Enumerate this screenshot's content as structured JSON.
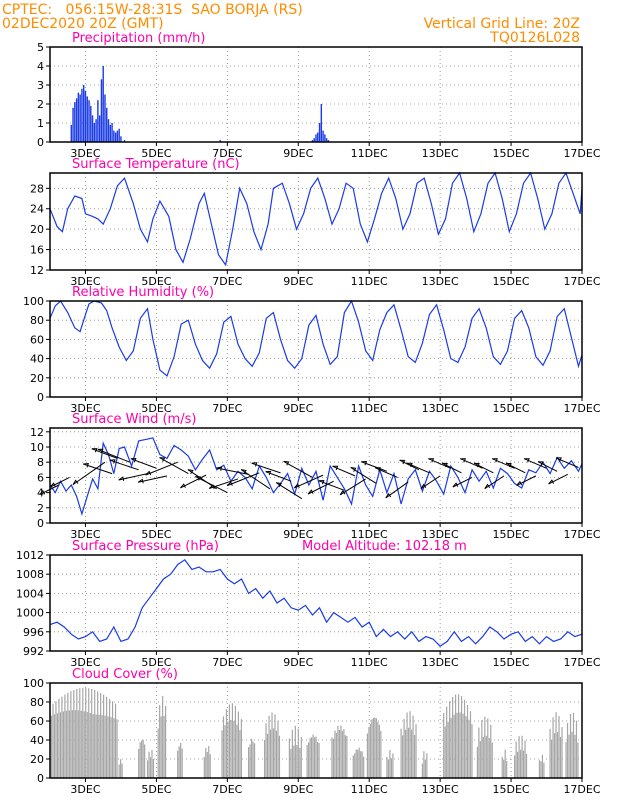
{
  "header": {
    "line1_left": "CPTEC:   056:15W-28:31S  SAO BORJA (RS)",
    "line2_left": "02DEC2020 20Z (GMT)",
    "line1_right": "Vertical Grid Line: 20Z",
    "line2_right": "TQ0126L028"
  },
  "colors": {
    "header": "#ff8c00",
    "title": "#ff00aa",
    "series": "#1a3be6",
    "cloud": "#a6a6a6",
    "grid": "#888888"
  },
  "chart_data": [
    {
      "id": "precip",
      "type": "bar",
      "title": "Precipitation (mm/h)",
      "ylim": [
        0,
        5
      ],
      "yticks": [
        0,
        1,
        2,
        3,
        4,
        5
      ],
      "xlim": [
        2.0,
        17.0
      ],
      "xticks": [
        "3DEC",
        "5DEC",
        "7DEC",
        "9DEC",
        "11DEC",
        "13DEC",
        "15DEC",
        "17DEC"
      ],
      "grid": true,
      "x": [
        2.6,
        2.65,
        2.7,
        2.75,
        2.8,
        2.85,
        2.9,
        2.95,
        3.0,
        3.05,
        3.1,
        3.15,
        3.2,
        3.25,
        3.3,
        3.35,
        3.4,
        3.45,
        3.5,
        3.55,
        3.6,
        3.65,
        3.7,
        3.75,
        3.8,
        3.85,
        3.9,
        3.95,
        4.0,
        4.1,
        6.8,
        9.4,
        9.45,
        9.5,
        9.55,
        9.6,
        9.65,
        9.7,
        9.75,
        9.8,
        9.85
      ],
      "values": [
        0.9,
        1.8,
        2.1,
        2.3,
        2.6,
        2.5,
        2.8,
        3.0,
        2.7,
        2.4,
        2.2,
        1.9,
        1.4,
        1.0,
        1.2,
        2.2,
        1.4,
        3.3,
        4.0,
        2.5,
        1.8,
        1.2,
        0.9,
        1.0,
        0.6,
        0.5,
        0.6,
        0.7,
        0.3,
        0.1,
        0.1,
        0.1,
        0.2,
        0.4,
        0.5,
        1.0,
        2.0,
        0.6,
        0.4,
        0.2,
        0.1
      ]
    },
    {
      "id": "temp",
      "type": "line",
      "title": "Surface Temperature (nC)",
      "ylim": [
        12,
        31
      ],
      "yticks": [
        12,
        16,
        20,
        24,
        28
      ],
      "xlim": [
        2.0,
        17.0
      ],
      "xticks": [
        "3DEC",
        "5DEC",
        "7DEC",
        "9DEC",
        "11DEC",
        "13DEC",
        "15DEC",
        "17DEC"
      ],
      "grid": true,
      "x": [
        2.0,
        2.2,
        2.35,
        2.5,
        2.7,
        2.9,
        3.0,
        3.2,
        3.35,
        3.5,
        3.7,
        3.9,
        4.1,
        4.35,
        4.55,
        4.75,
        4.9,
        5.1,
        5.35,
        5.55,
        5.75,
        5.95,
        6.2,
        6.35,
        6.55,
        6.75,
        6.95,
        7.15,
        7.35,
        7.55,
        7.75,
        7.95,
        8.15,
        8.3,
        8.55,
        8.75,
        8.95,
        9.15,
        9.35,
        9.55,
        9.75,
        9.95,
        10.15,
        10.35,
        10.55,
        10.75,
        10.95,
        11.15,
        11.35,
        11.55,
        11.75,
        11.95,
        12.15,
        12.35,
        12.55,
        12.75,
        12.95,
        13.15,
        13.35,
        13.55,
        13.75,
        13.95,
        14.15,
        14.35,
        14.55,
        14.75,
        14.95,
        15.15,
        15.35,
        15.55,
        15.75,
        15.95,
        16.15,
        16.35,
        16.55,
        16.75,
        16.95,
        17.0
      ],
      "values": [
        24,
        20.5,
        19.5,
        24,
        26.5,
        26,
        23,
        22.5,
        22,
        21,
        24,
        28.5,
        30,
        25,
        20,
        17.5,
        22,
        25.5,
        22.5,
        16,
        13.5,
        18,
        25,
        27,
        21,
        15,
        13,
        20,
        28,
        25,
        19.5,
        16,
        21,
        28,
        29,
        25,
        20,
        23,
        28,
        30,
        26,
        21,
        24,
        29,
        28,
        21,
        17.5,
        22,
        27,
        30,
        26,
        20,
        23,
        29,
        30,
        25,
        19,
        22,
        29,
        31,
        26,
        19.5,
        23,
        29,
        31,
        26,
        19.5,
        23,
        29,
        31,
        26,
        20,
        23,
        29,
        31,
        27,
        23,
        28
      ]
    },
    {
      "id": "rh",
      "type": "line",
      "title": "Relative Humidity (%)",
      "ylim": [
        0,
        100
      ],
      "yticks": [
        0,
        20,
        40,
        60,
        80,
        100
      ],
      "xlim": [
        2.0,
        17.0
      ],
      "xticks": [
        "3DEC",
        "5DEC",
        "7DEC",
        "9DEC",
        "11DEC",
        "13DEC",
        "15DEC",
        "17DEC"
      ],
      "grid": true,
      "x": [
        2.0,
        2.15,
        2.3,
        2.5,
        2.7,
        2.85,
        3.0,
        3.1,
        3.25,
        3.45,
        3.6,
        3.75,
        3.95,
        4.15,
        4.35,
        4.55,
        4.75,
        4.9,
        5.1,
        5.3,
        5.5,
        5.7,
        5.9,
        6.1,
        6.3,
        6.5,
        6.7,
        6.9,
        7.1,
        7.3,
        7.5,
        7.7,
        7.9,
        8.1,
        8.3,
        8.5,
        8.7,
        8.9,
        9.1,
        9.3,
        9.5,
        9.7,
        9.9,
        10.1,
        10.3,
        10.5,
        10.7,
        10.9,
        11.1,
        11.3,
        11.5,
        11.7,
        11.9,
        12.1,
        12.3,
        12.5,
        12.7,
        12.9,
        13.1,
        13.3,
        13.5,
        13.7,
        13.9,
        14.1,
        14.3,
        14.5,
        14.7,
        14.9,
        15.1,
        15.3,
        15.5,
        15.7,
        15.9,
        16.1,
        16.3,
        16.5,
        16.7,
        16.9,
        17.0
      ],
      "values": [
        82,
        95,
        100,
        88,
        72,
        68,
        86,
        97,
        100,
        98,
        90,
        72,
        52,
        38,
        48,
        82,
        92,
        60,
        28,
        22,
        42,
        76,
        80,
        55,
        38,
        30,
        45,
        78,
        84,
        55,
        40,
        32,
        46,
        82,
        88,
        60,
        38,
        30,
        40,
        75,
        85,
        55,
        34,
        42,
        88,
        100,
        78,
        48,
        38,
        70,
        88,
        96,
        70,
        42,
        36,
        56,
        86,
        96,
        70,
        40,
        36,
        52,
        82,
        92,
        72,
        42,
        34,
        48,
        82,
        90,
        72,
        42,
        33,
        48,
        84,
        92,
        62,
        32,
        44
      ]
    },
    {
      "id": "wind",
      "type": "line",
      "title": "Surface Wind (m/s)",
      "ylim": [
        0,
        12.5
      ],
      "yticks": [
        0,
        2,
        4,
        6,
        8,
        10,
        12
      ],
      "xlim": [
        2.0,
        17.0
      ],
      "xticks": [
        "3DEC",
        "5DEC",
        "7DEC",
        "9DEC",
        "11DEC",
        "13DEC",
        "15DEC",
        "17DEC"
      ],
      "grid": true,
      "x": [
        2.0,
        2.15,
        2.3,
        2.45,
        2.6,
        2.75,
        2.9,
        3.05,
        3.2,
        3.35,
        3.5,
        3.65,
        3.8,
        3.95,
        4.1,
        4.3,
        4.5,
        4.7,
        4.9,
        5.1,
        5.3,
        5.5,
        5.7,
        5.9,
        6.1,
        6.3,
        6.5,
        6.7,
        6.9,
        7.1,
        7.3,
        7.5,
        7.7,
        7.9,
        8.1,
        8.3,
        8.5,
        8.7,
        8.9,
        9.1,
        9.3,
        9.5,
        9.7,
        9.9,
        10.1,
        10.3,
        10.5,
        10.7,
        10.9,
        11.1,
        11.3,
        11.5,
        11.7,
        11.9,
        12.1,
        12.3,
        12.5,
        12.7,
        12.9,
        13.1,
        13.3,
        13.5,
        13.7,
        13.9,
        14.1,
        14.3,
        14.5,
        14.7,
        14.9,
        15.1,
        15.3,
        15.5,
        15.7,
        15.9,
        16.1,
        16.3,
        16.5,
        16.7,
        16.9,
        17.0
      ],
      "values": [
        5,
        4,
        5.5,
        4.2,
        5,
        3.5,
        1.2,
        3.5,
        5.8,
        4.5,
        10.5,
        9,
        6.5,
        9.8,
        10,
        7.5,
        10.8,
        11,
        11.2,
        9,
        8.5,
        10.2,
        9.6,
        8.8,
        7,
        8.4,
        9.6,
        7,
        7.6,
        5.5,
        6.8,
        6,
        4.5,
        7.5,
        6,
        4,
        5.2,
        6.5,
        3.8,
        7.2,
        5,
        6.8,
        3,
        7.5,
        6,
        4.5,
        2.5,
        7.5,
        5,
        3.5,
        7,
        4,
        6.5,
        2.5,
        5.8,
        7,
        4.2,
        6.8,
        5.5,
        3.8,
        7.5,
        6,
        4,
        7,
        5.5,
        6.8,
        4.6,
        7.2,
        6.5,
        5.2,
        4.6,
        7,
        6.6,
        8,
        6.5,
        8.6,
        7.2,
        8.2,
        6.8,
        7.8
      ],
      "arrows": {
        "x": [
          2.25,
          2.55,
          3.55,
          3.75,
          3.9,
          4.25,
          4.5,
          4.75,
          5.0,
          5.3,
          5.6,
          5.9,
          6.4,
          6.7,
          7.0,
          7.3,
          7.6,
          7.9,
          8.2,
          8.5,
          8.8,
          9.1,
          9.4,
          9.7,
          10.0,
          10.3,
          10.6,
          10.9,
          11.2,
          11.5,
          11.8,
          12.1,
          12.4,
          12.7,
          13.0,
          13.3,
          13.6,
          13.9,
          14.2,
          14.5,
          14.8,
          15.1,
          15.4,
          15.7,
          16.0,
          16.3,
          16.6,
          16.9
        ],
        "y": [
          5,
          6,
          8,
          6.5,
          8.5,
          8,
          7,
          6.5,
          7.2,
          6.2,
          8,
          6.5,
          6.3,
          4.5,
          4,
          5.8,
          6.4,
          6.6,
          4.5,
          6.6,
          5.5,
          3.2,
          6,
          6.3,
          5.5,
          4.3,
          6.2,
          5.8,
          5.2,
          6.8,
          6,
          5.4,
          7,
          6.6,
          6.2,
          7.2,
          6.6,
          6,
          7.2,
          6.6,
          6.2,
          7.2,
          6.6,
          6.2,
          7.2,
          6.8,
          6.4,
          7.3
        ],
        "u": [
          -6,
          -6,
          -10,
          -9,
          -8,
          -10,
          -9,
          -9,
          -8,
          -9,
          -10,
          -9,
          -8,
          -9,
          -10,
          -9,
          -10,
          -10,
          -9,
          -9,
          -8,
          -8,
          -9,
          -9,
          -8,
          -8,
          -7,
          -8,
          -8,
          -8,
          -7,
          -7,
          -6,
          -7,
          -6,
          -7,
          -6,
          -6,
          -7,
          -6,
          -6,
          -7,
          -6,
          -6,
          -7,
          -6,
          -6,
          -7
        ],
        "v": [
          -3,
          -3,
          -7,
          3,
          3,
          4,
          3,
          -2,
          3,
          -2,
          -4,
          5,
          -4,
          6,
          5,
          -3,
          2,
          -4,
          6,
          3,
          3,
          5,
          5,
          -4,
          -4,
          3,
          3,
          -5,
          5,
          3,
          3,
          -5,
          3,
          3,
          -4,
          3,
          3,
          -3,
          3,
          3,
          -4,
          3,
          3,
          -3,
          3,
          3,
          -3,
          3
        ]
      }
    },
    {
      "id": "pressure",
      "type": "line",
      "title": "Surface Pressure (hPa)",
      "annotation": "Model Altitude: 102.18  m",
      "ylim": [
        992,
        1012
      ],
      "yticks": [
        992,
        996,
        1000,
        1004,
        1008,
        1012
      ],
      "xlim": [
        2.0,
        17.0
      ],
      "xticks": [
        "3DEC",
        "5DEC",
        "7DEC",
        "9DEC",
        "11DEC",
        "13DEC",
        "15DEC",
        "17DEC"
      ],
      "grid": true,
      "x": [
        2.0,
        2.2,
        2.4,
        2.6,
        2.8,
        3.0,
        3.2,
        3.4,
        3.6,
        3.8,
        4.0,
        4.2,
        4.4,
        4.6,
        4.8,
        5.0,
        5.2,
        5.4,
        5.6,
        5.8,
        6.0,
        6.2,
        6.4,
        6.6,
        6.8,
        7.0,
        7.2,
        7.4,
        7.6,
        7.8,
        8.0,
        8.2,
        8.4,
        8.6,
        8.8,
        9.0,
        9.2,
        9.4,
        9.6,
        9.8,
        10.0,
        10.2,
        10.4,
        10.6,
        10.8,
        11.0,
        11.2,
        11.4,
        11.6,
        11.8,
        12.0,
        12.2,
        12.4,
        12.6,
        12.8,
        13.0,
        13.2,
        13.4,
        13.6,
        13.8,
        14.0,
        14.2,
        14.4,
        14.6,
        14.8,
        15.0,
        15.2,
        15.4,
        15.6,
        15.8,
        16.0,
        16.2,
        16.4,
        16.6,
        16.8,
        17.0
      ],
      "values": [
        997.5,
        998,
        997,
        995.5,
        994.5,
        995,
        996,
        994,
        994.5,
        997,
        994,
        994.5,
        997,
        1001,
        1003,
        1005,
        1007,
        1008,
        1010,
        1011,
        1009,
        1009.5,
        1008.5,
        1008.5,
        1009,
        1007,
        1006,
        1007,
        1004,
        1005,
        1003,
        1004.5,
        1002,
        1003,
        1001,
        1000.5,
        1001.5,
        999.5,
        1001,
        998,
        1000,
        999,
        998,
        999,
        997,
        998,
        995,
        996.5,
        995,
        996,
        994.5,
        996,
        994,
        995,
        994.5,
        993,
        994,
        996,
        994,
        995,
        993.5,
        995,
        997,
        996,
        994.5,
        995.5,
        996,
        994,
        995,
        993.5,
        995,
        994,
        994.5,
        996,
        995,
        995.5
      ]
    },
    {
      "id": "cloud",
      "type": "bar",
      "title": "Cloud Cover (%)",
      "ylim": [
        0,
        100
      ],
      "yticks": [
        0,
        20,
        40,
        60,
        80,
        100
      ],
      "xlim": [
        2.0,
        17.0
      ],
      "xticks": [
        "3DEC",
        "5DEC",
        "7DEC",
        "9DEC",
        "11DEC",
        "13DEC",
        "15DEC",
        "17DEC"
      ],
      "grid": true,
      "segments": [
        {
          "start": 2.0,
          "end": 3.9,
          "base": 95,
          "min": 35
        },
        {
          "start": 3.95,
          "end": 4.05,
          "base": 20,
          "min": 10
        },
        {
          "start": 4.5,
          "end": 4.7,
          "base": 45,
          "min": 10
        },
        {
          "start": 4.75,
          "end": 4.95,
          "base": 30,
          "min": 10
        },
        {
          "start": 5.05,
          "end": 5.3,
          "base": 88,
          "min": 20
        },
        {
          "start": 5.6,
          "end": 5.75,
          "base": 40,
          "min": 10
        },
        {
          "start": 6.35,
          "end": 6.55,
          "base": 35,
          "min": 10
        },
        {
          "start": 6.85,
          "end": 7.4,
          "base": 80,
          "min": 20
        },
        {
          "start": 7.6,
          "end": 7.8,
          "base": 45,
          "min": 10
        },
        {
          "start": 8.05,
          "end": 8.5,
          "base": 70,
          "min": 15
        },
        {
          "start": 8.75,
          "end": 9.1,
          "base": 55,
          "min": 10
        },
        {
          "start": 9.25,
          "end": 9.6,
          "base": 50,
          "min": 10
        },
        {
          "start": 9.95,
          "end": 10.4,
          "base": 60,
          "min": 10
        },
        {
          "start": 10.55,
          "end": 10.85,
          "base": 35,
          "min": 5
        },
        {
          "start": 10.95,
          "end": 11.35,
          "base": 72,
          "min": 10
        },
        {
          "start": 11.5,
          "end": 11.7,
          "base": 30,
          "min": 5
        },
        {
          "start": 11.9,
          "end": 12.35,
          "base": 72,
          "min": 10
        },
        {
          "start": 12.5,
          "end": 12.65,
          "base": 30,
          "min": 5
        },
        {
          "start": 13.1,
          "end": 13.9,
          "base": 90,
          "min": 20
        },
        {
          "start": 14.05,
          "end": 14.5,
          "base": 65,
          "min": 10
        },
        {
          "start": 14.75,
          "end": 14.9,
          "base": 30,
          "min": 5
        },
        {
          "start": 15.1,
          "end": 15.45,
          "base": 45,
          "min": 10
        },
        {
          "start": 15.8,
          "end": 15.95,
          "base": 25,
          "min": 5
        },
        {
          "start": 16.1,
          "end": 16.45,
          "base": 70,
          "min": 10
        },
        {
          "start": 16.55,
          "end": 16.9,
          "base": 70,
          "min": 10
        }
      ]
    }
  ]
}
